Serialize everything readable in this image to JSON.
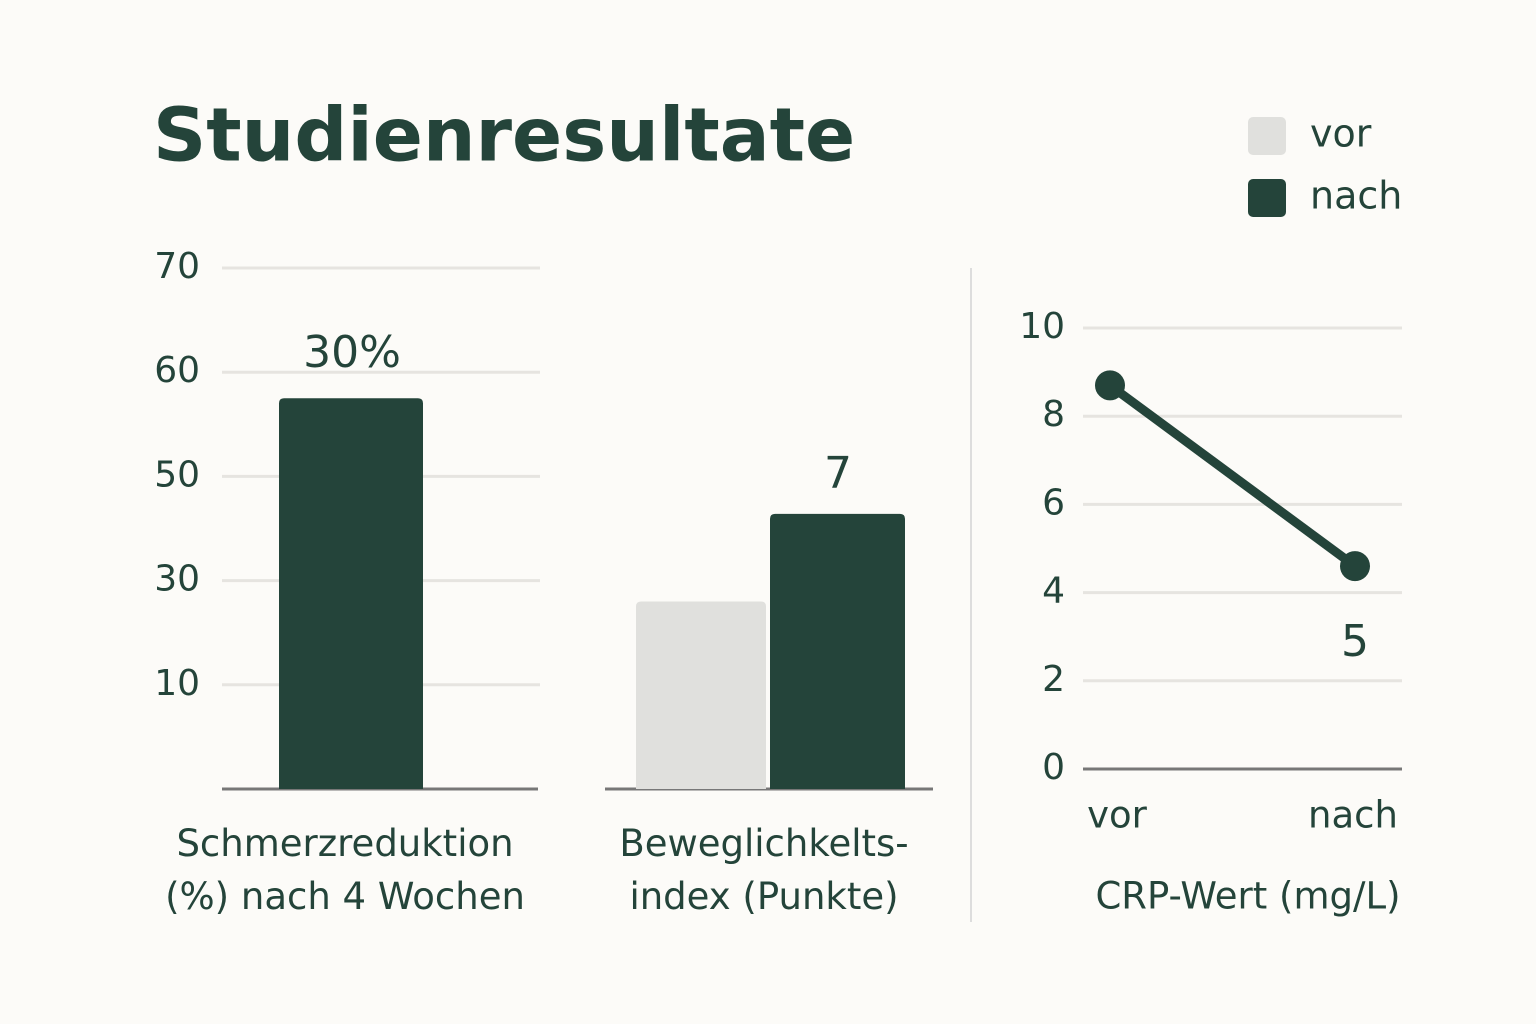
{
  "chart_data": [
    {
      "type": "bar",
      "title": "Studienresultate",
      "categories": [
        "Schmerzreduktion\n(%) nach 4 Wochen",
        "Beweglichkelts-\nindex (Punkte)"
      ],
      "series": [
        {
          "name": "vor",
          "color": "#e0e0dd",
          "values": [
            null,
            26
          ]
        },
        {
          "name": "nach",
          "color": "#24443a",
          "values": [
            57.5,
            42.8
          ]
        }
      ],
      "annotations": [
        "30%",
        "7"
      ],
      "ylim": [
        0,
        70
      ],
      "yticks": [
        10,
        30,
        50,
        60,
        70
      ],
      "grid": true
    },
    {
      "type": "line",
      "xlabel": "CRP-Wert (mg/L)",
      "categories": [
        "vor",
        "nach"
      ],
      "values": [
        8.7,
        4.6
      ],
      "value_labels": [
        null,
        "5"
      ],
      "color": "#24443a",
      "ylim": [
        0,
        10
      ],
      "yticks": [
        0,
        2,
        4,
        6,
        8,
        10
      ],
      "grid": true
    }
  ]
}
